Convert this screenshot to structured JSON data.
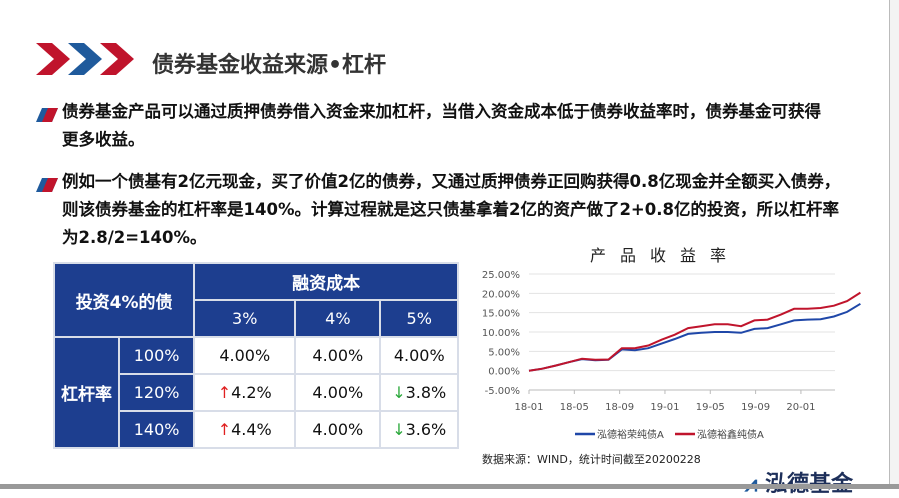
{
  "header": {
    "title": "债券基金收益来源•杠杆"
  },
  "bullets": [
    {
      "lines": [
        "债券基金产品可以通过质押债券借入资金来加杠杆，当借入资金成本低于债券收益率时，债券基金可获得",
        "更多收益。"
      ]
    },
    {
      "lines": [
        "例如一个债基有2亿元现金，买了价值2亿的债券，又通过质押债券正回购获得0.8亿现金并全额买入债券，",
        "则该债券基金的杠杆率是140%。计算过程就是这只债基拿着2亿的资产做了2+0.8亿的投资，所以杠杆率",
        "为2.8/2=140%。"
      ]
    }
  ],
  "table": {
    "corner": "投资4%的债",
    "cost_header": "融资成本",
    "costs": [
      "3%",
      "4%",
      "5%"
    ],
    "leverage_header": "杠杆率",
    "rows": [
      {
        "label": "100%",
        "cells": [
          {
            "v": "4.00%",
            "dir": ""
          },
          {
            "v": "4.00%",
            "dir": ""
          },
          {
            "v": "4.00%",
            "dir": ""
          }
        ]
      },
      {
        "label": "120%",
        "cells": [
          {
            "v": "4.2%",
            "dir": "up"
          },
          {
            "v": "4.00%",
            "dir": ""
          },
          {
            "v": "3.8%",
            "dir": "down"
          }
        ]
      },
      {
        "label": "140%",
        "cells": [
          {
            "v": "4.4%",
            "dir": "up"
          },
          {
            "v": "4.00%",
            "dir": ""
          },
          {
            "v": "3.6%",
            "dir": "down"
          }
        ]
      }
    ],
    "colors": {
      "header": "#1d3e8f",
      "up": "#e02020",
      "down": "#2aa83a"
    }
  },
  "chart_data": {
    "type": "line",
    "title": "产品收益率",
    "x": [
      "18-01",
      "18-02",
      "18-03",
      "18-04",
      "18-05",
      "18-06",
      "18-07",
      "18-08",
      "18-09",
      "18-10",
      "18-11",
      "18-12",
      "19-01",
      "19-02",
      "19-03",
      "19-04",
      "19-05",
      "19-06",
      "19-07",
      "19-08",
      "19-09",
      "19-10",
      "19-11",
      "19-12",
      "20-01",
      "20-02"
    ],
    "x_ticks": [
      "18-01",
      "18-05",
      "18-09",
      "19-01",
      "19-05",
      "19-09",
      "20-01"
    ],
    "y_ticks": [
      "-5.00%",
      "0.00%",
      "5.00%",
      "10.00%",
      "15.00%",
      "20.00%",
      "25.00%"
    ],
    "ylim": [
      -5,
      25
    ],
    "grid": true,
    "legend": "bottom",
    "series": [
      {
        "name": "泓德裕荣纯债A",
        "color": "#1f47a8",
        "values": [
          0,
          0.5,
          1.3,
          2.2,
          3.0,
          2.7,
          2.8,
          5.5,
          5.3,
          5.8,
          7.0,
          8.2,
          9.5,
          9.8,
          10.0,
          10.0,
          9.8,
          10.8,
          11.0,
          12.0,
          13.0,
          13.2,
          13.3,
          14.0,
          15.2,
          17.3
        ]
      },
      {
        "name": "泓德裕鑫纯债A",
        "color": "#c0142c",
        "values": [
          0,
          0.5,
          1.3,
          2.2,
          3.1,
          2.8,
          2.9,
          5.8,
          5.8,
          6.5,
          8.0,
          9.3,
          11.0,
          11.5,
          12.0,
          12.0,
          11.5,
          13.0,
          13.2,
          14.5,
          16.0,
          16.0,
          16.2,
          16.8,
          18.0,
          20.2
        ]
      }
    ],
    "source": "数据来源：WIND，统计时间截至20200228"
  },
  "logo": "泓德基金"
}
